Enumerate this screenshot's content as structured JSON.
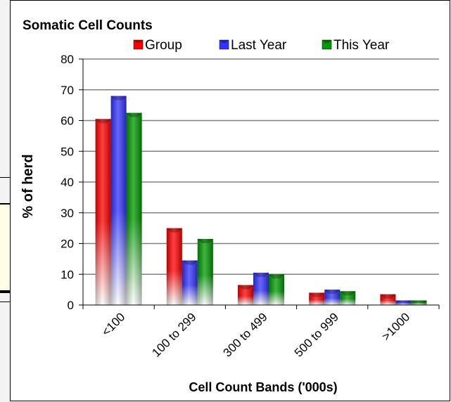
{
  "chart_data": {
    "type": "bar",
    "title": "Somatic Cell Counts",
    "xlabel": "Cell Count Bands ('000s)",
    "ylabel": "% of herd",
    "categories": [
      "<100",
      "100 to 299",
      "300 to 499",
      "500 to 999",
      ">1000"
    ],
    "series": [
      {
        "name": "Group",
        "color": "#ff0000",
        "values": [
          60.5,
          25,
          6.5,
          4,
          3.5
        ]
      },
      {
        "name": "Last Year",
        "color": "#3333ff",
        "values": [
          68,
          14.5,
          10.5,
          5,
          1.5
        ]
      },
      {
        "name": "This Year",
        "color": "#009900",
        "values": [
          62.5,
          21.5,
          10,
          4.5,
          1.5
        ]
      }
    ],
    "ylim": [
      0,
      80
    ],
    "yticks": [
      0,
      10,
      20,
      30,
      40,
      50,
      60,
      70,
      80
    ],
    "grid": true,
    "legend": "top"
  }
}
